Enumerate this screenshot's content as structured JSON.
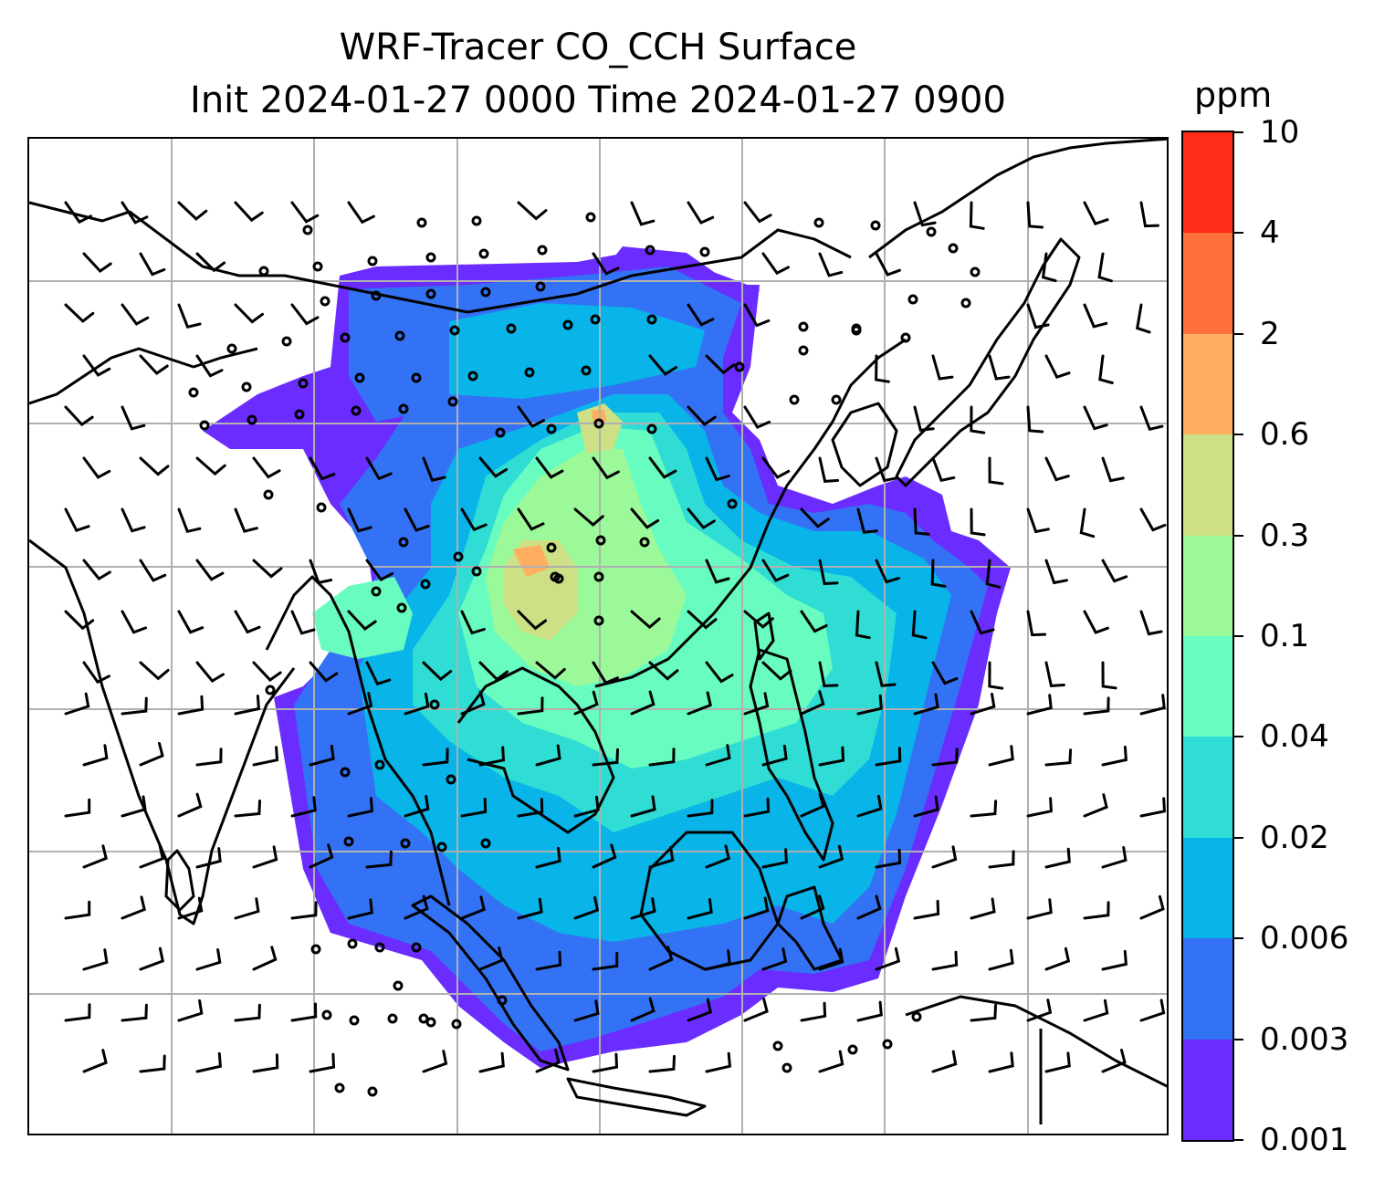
{
  "title": {
    "line1": "WRF-Tracer CO_CCH Surface",
    "line2": "Init 2024-01-27 0000 Time 2024-01-27 0900"
  },
  "colorbar": {
    "units": "ppm",
    "levels": [
      "0.001",
      "0.003",
      "0.006",
      "0.02",
      "0.04",
      "0.1",
      "0.3",
      "0.6",
      "2",
      "4",
      "10"
    ],
    "colors": [
      "#6a2cff",
      "#3472f5",
      "#08b4e8",
      "#30ddd4",
      "#68fcc0",
      "#9cf99a",
      "#cde085",
      "#ffad5e",
      "#ff713c",
      "#ff2c1a"
    ]
  },
  "map": {
    "field": "CO_CCH",
    "level": "Surface",
    "wind_symbol": "barb",
    "calm_symbol": "circle",
    "gridline_color": "#b0b0b0",
    "coastline_color": "#000000"
  }
}
